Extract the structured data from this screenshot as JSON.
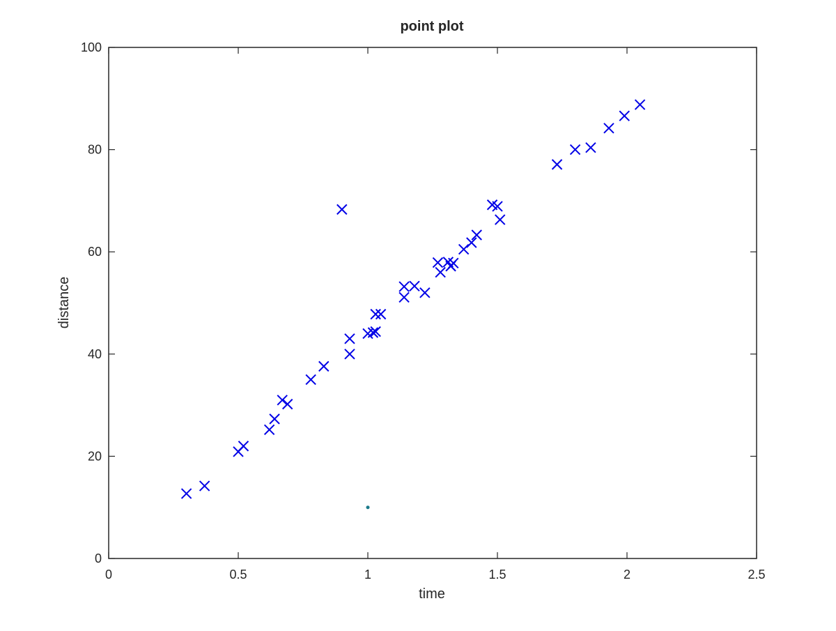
{
  "chart_data": {
    "type": "scatter",
    "title": "point plot",
    "xlabel": "time",
    "ylabel": "distance",
    "xlim": [
      0,
      2.5
    ],
    "ylim": [
      0,
      100
    ],
    "xticks": [
      0,
      0.5,
      1,
      1.5,
      2,
      2.5
    ],
    "xtick_labels": [
      "0",
      "0.5",
      "1",
      "1.5",
      "2",
      "2.5"
    ],
    "yticks": [
      0,
      20,
      40,
      60,
      80,
      100
    ],
    "ytick_labels": [
      "0",
      "20",
      "40",
      "60",
      "80",
      "100"
    ],
    "grid": false,
    "box": true,
    "series": [
      {
        "marker": "x",
        "color": "#0000e6",
        "x": [
          0.3,
          0.37,
          0.5,
          0.52,
          0.62,
          0.64,
          0.67,
          0.69,
          0.78,
          0.83,
          0.9,
          0.93,
          0.93,
          1.0,
          1.02,
          1.03,
          1.03,
          1.05,
          1.14,
          1.14,
          1.18,
          1.22,
          1.27,
          1.28,
          1.31,
          1.32,
          1.32,
          1.33,
          1.37,
          1.4,
          1.42,
          1.48,
          1.5,
          1.51,
          1.73,
          1.8,
          1.86,
          1.93,
          1.99,
          2.05
        ],
        "y": [
          12.7,
          14.2,
          20.9,
          22.0,
          25.2,
          27.3,
          31.0,
          30.2,
          35.0,
          37.6,
          68.3,
          43.0,
          40.0,
          44.0,
          44.2,
          44.4,
          47.8,
          47.8,
          53.2,
          51.1,
          53.3,
          52.0,
          57.9,
          56.0,
          58.0,
          57.2,
          57.2,
          57.8,
          60.5,
          61.8,
          63.3,
          69.2,
          68.9,
          66.3,
          77.1,
          80.0,
          80.4,
          84.2,
          86.6,
          88.8
        ]
      },
      {
        "marker": "dot",
        "color": "#1b7a8a",
        "x": [
          1.0
        ],
        "y": [
          10.0
        ]
      }
    ]
  }
}
